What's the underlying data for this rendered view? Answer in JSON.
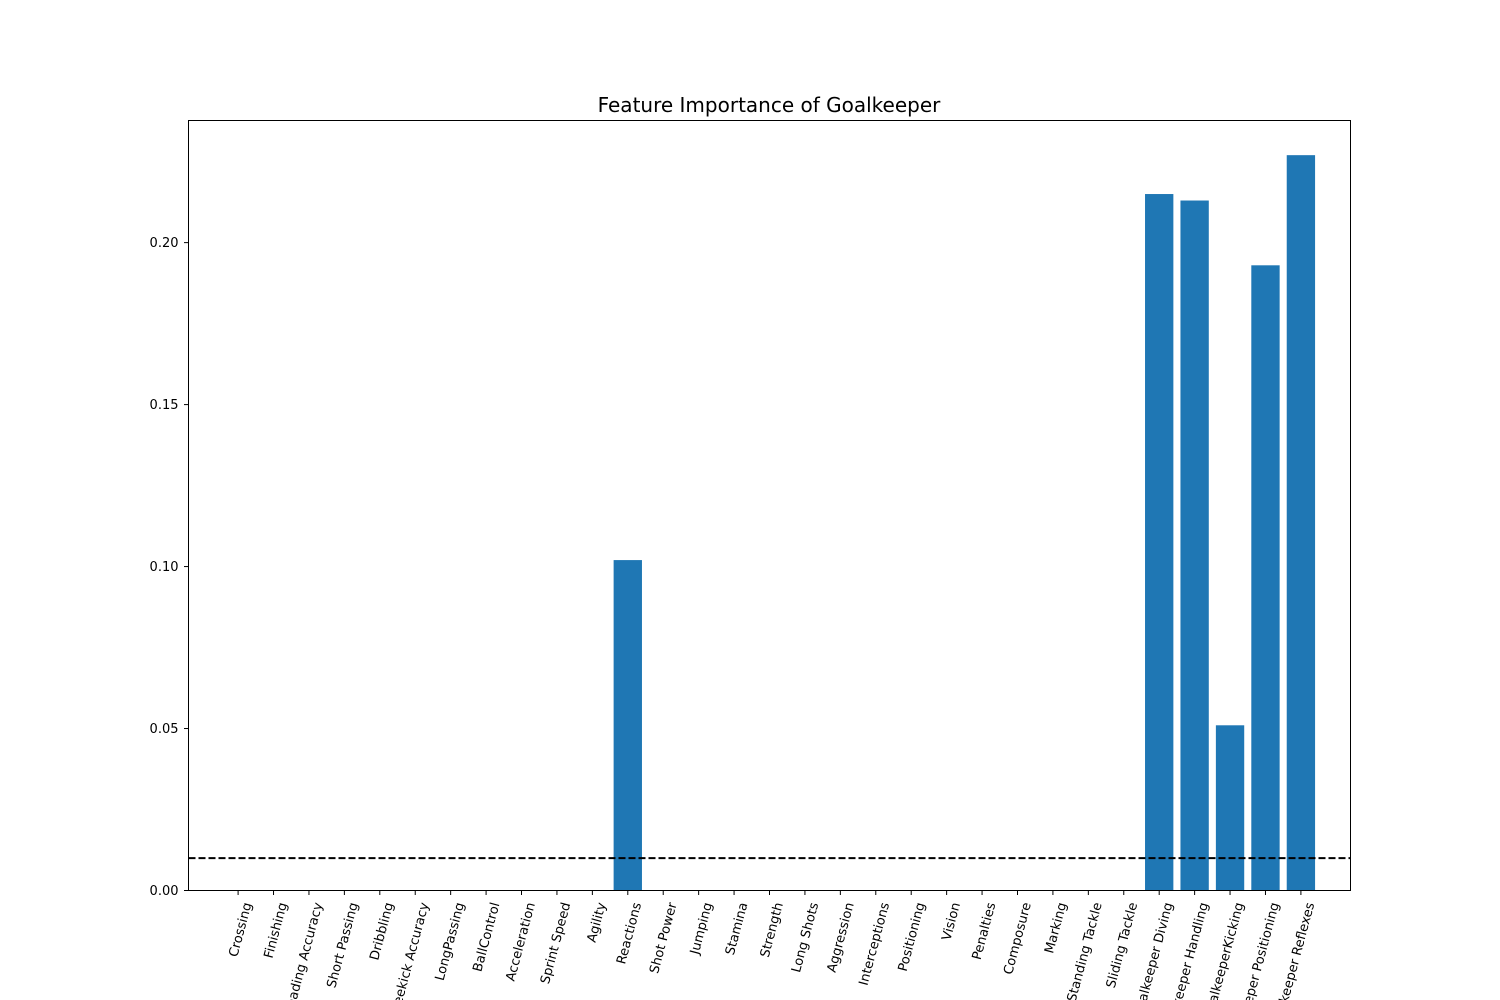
{
  "chart_data": {
    "type": "bar",
    "title": "Feature Importance of Goalkeeper",
    "xlabel": "",
    "ylabel": "",
    "categories": [
      "Crossing",
      "Finishing",
      "Heading Accuracy",
      "Short Passing",
      "Dribbling",
      "Freekick Accuracy",
      "LongPassing",
      "BallControl",
      "Acceleration",
      "Sprint Speed",
      "Agility",
      "Reactions",
      "Shot Power",
      "Jumping",
      "Stamina",
      "Strength",
      "Long Shots",
      "Aggression",
      "Interceptions",
      "Positioning",
      "Vision",
      "Penalties",
      "Composure",
      "Marking",
      "Standing Tackle",
      "Sliding Tackle",
      "Goalkeeper Diving",
      "Goalkeeper Handling",
      "GoalkeeperKicking",
      "Goalkeeper Positioning",
      "Goalkeeper Reflexes"
    ],
    "values": [
      0,
      0,
      0,
      0,
      0,
      0,
      0,
      0,
      0,
      0,
      0,
      0.102,
      0,
      0,
      0,
      0,
      0,
      0,
      0,
      0,
      0,
      0,
      0,
      0,
      0,
      0,
      0.215,
      0.213,
      0.051,
      0.193,
      0.227
    ],
    "ylim": [
      0,
      0.2377
    ],
    "yticks": [
      "0.00",
      "0.05",
      "0.10",
      "0.15",
      "0.20"
    ],
    "threshold": 0.01,
    "bar_color": "#1f77b4",
    "threshold_color": "#000000",
    "grid": false
  }
}
